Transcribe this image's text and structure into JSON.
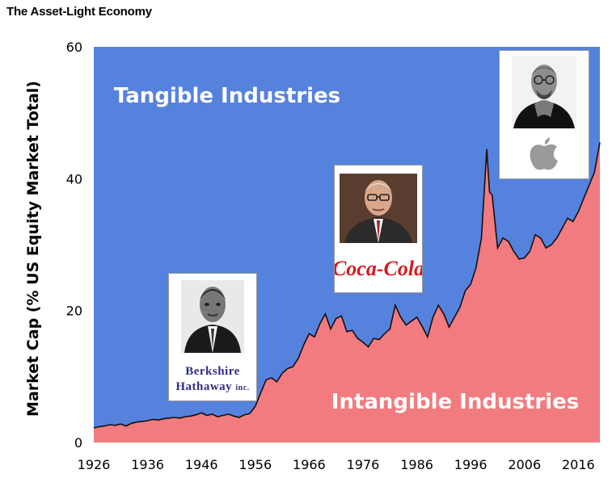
{
  "page_title": "The Asset-Light Economy",
  "chart_data": {
    "type": "area",
    "ylabel": "Market Cap (% US Equity Market Total)",
    "xlabel": "",
    "xlim": [
      1926,
      2020
    ],
    "ylim": [
      0,
      60
    ],
    "xticks": [
      "1926",
      "1936",
      "1946",
      "1956",
      "1966",
      "1976",
      "1986",
      "1996",
      "2006",
      "2016"
    ],
    "yticks": [
      "0",
      "20",
      "40",
      "60"
    ],
    "series": [
      {
        "name": "Intangible Industries",
        "color": "#f27b7f",
        "x": [
          1926,
          1927,
          1928,
          1929,
          1930,
          1931,
          1932,
          1933,
          1934,
          1935,
          1936,
          1937,
          1938,
          1939,
          1940,
          1941,
          1942,
          1943,
          1944,
          1945,
          1946,
          1947,
          1948,
          1949,
          1950,
          1951,
          1952,
          1953,
          1954,
          1955,
          1956,
          1957,
          1958,
          1959,
          1960,
          1961,
          1962,
          1963,
          1964,
          1965,
          1966,
          1967,
          1968,
          1969,
          1970,
          1971,
          1972,
          1973,
          1974,
          1975,
          1976,
          1977,
          1978,
          1979,
          1980,
          1981,
          1982,
          1983,
          1984,
          1985,
          1986,
          1987,
          1988,
          1989,
          1990,
          1991,
          1992,
          1993,
          1994,
          1995,
          1996,
          1997,
          1998,
          1999,
          1999.5,
          2000,
          2001,
          2002,
          2003,
          2004,
          2005,
          2006,
          2007,
          2008,
          2009,
          2010,
          2011,
          2012,
          2013,
          2014,
          2015,
          2016,
          2017,
          2018,
          2019,
          2020
        ],
        "y": [
          2.2,
          2.4,
          2.5,
          2.7,
          2.6,
          2.8,
          2.5,
          2.9,
          3.1,
          3.2,
          3.3,
          3.5,
          3.4,
          3.6,
          3.7,
          3.8,
          3.7,
          3.9,
          4.0,
          4.2,
          4.5,
          4.1,
          4.3,
          3.9,
          4.1,
          4.3,
          4.0,
          3.8,
          4.2,
          4.4,
          5.5,
          7.5,
          9.5,
          9.8,
          9.2,
          10.5,
          11.2,
          11.5,
          12.8,
          14.8,
          16.5,
          16.0,
          18.0,
          19.5,
          17.2,
          18.8,
          19.2,
          16.8,
          17.0,
          15.8,
          15.2,
          14.5,
          15.8,
          15.6,
          16.5,
          17.2,
          20.8,
          19.0,
          17.8,
          18.4,
          19.0,
          17.6,
          16.0,
          19.0,
          20.8,
          19.5,
          17.5,
          19.0,
          20.5,
          23.0,
          24.0,
          26.5,
          31.0,
          44.5,
          38.0,
          37.5,
          29.5,
          31.0,
          30.5,
          29.0,
          27.8,
          28.0,
          29.0,
          31.5,
          31.0,
          29.5,
          30.0,
          31.0,
          32.5,
          34.0,
          33.5,
          35.0,
          37.0,
          39.0,
          41.0,
          45.5
        ]
      },
      {
        "name": "Tangible Industries",
        "color": "#5582dd"
      }
    ]
  },
  "cards": {
    "berkshire": {
      "brand_line1": "Berkshire",
      "brand_line2": "Hathaway",
      "brand_suffix": "inc."
    },
    "cocacola": {
      "brand": "Coca-Cola",
      "brand_color": "#d6191f"
    },
    "apple": {
      "logo_icon": "apple-icon"
    }
  }
}
